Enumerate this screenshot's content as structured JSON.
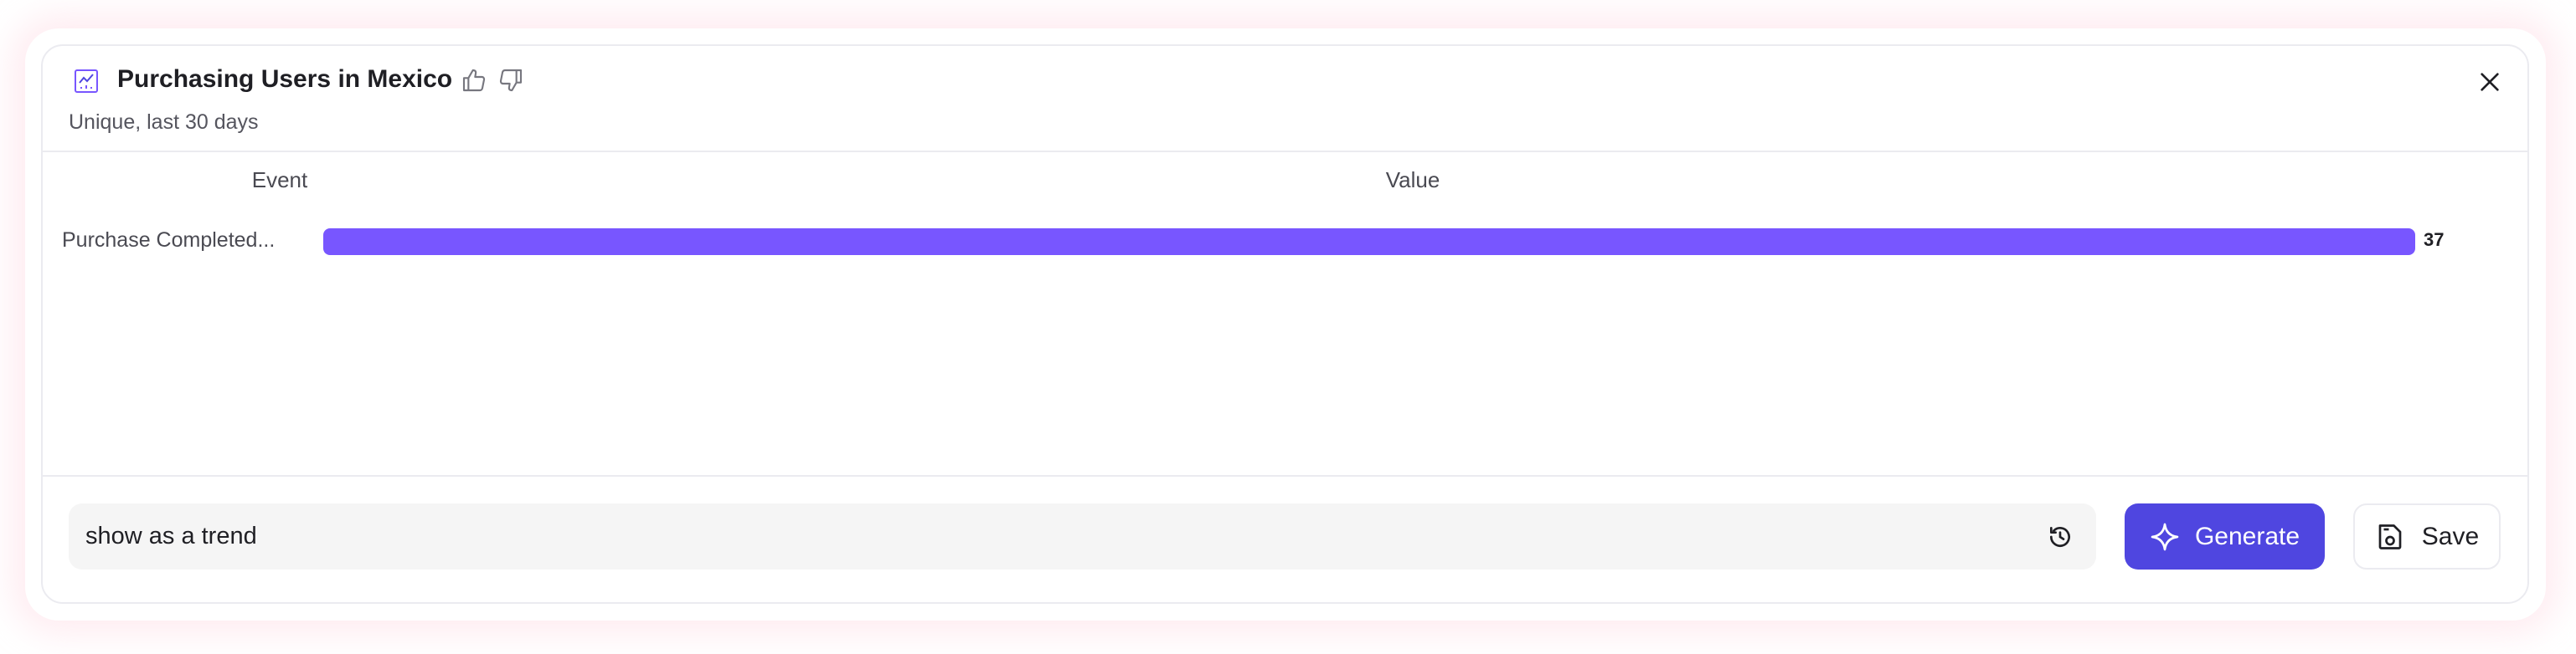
{
  "header": {
    "title": "Purchasing Users in Mexico",
    "subtitle": "Unique, last 30 days",
    "title_icon": "line-chart-icon",
    "feedback_icons": [
      "thumbs-up-icon",
      "thumbs-down-icon"
    ],
    "close_icon": "close-icon"
  },
  "chart_data": {
    "type": "bar",
    "orientation": "horizontal",
    "columns": [
      "Event",
      "Value"
    ],
    "categories": [
      "Purchase Completed..."
    ],
    "values": [
      37
    ],
    "value_labels": [
      "37"
    ],
    "color": "#7856ff"
  },
  "footer": {
    "query_value": "show as a trend",
    "history_icon": "history-icon",
    "generate_label": "Generate",
    "generate_icon": "sparkle-icon",
    "generate_color": "#4f46e0",
    "save_label": "Save",
    "save_icon": "save-icon"
  }
}
